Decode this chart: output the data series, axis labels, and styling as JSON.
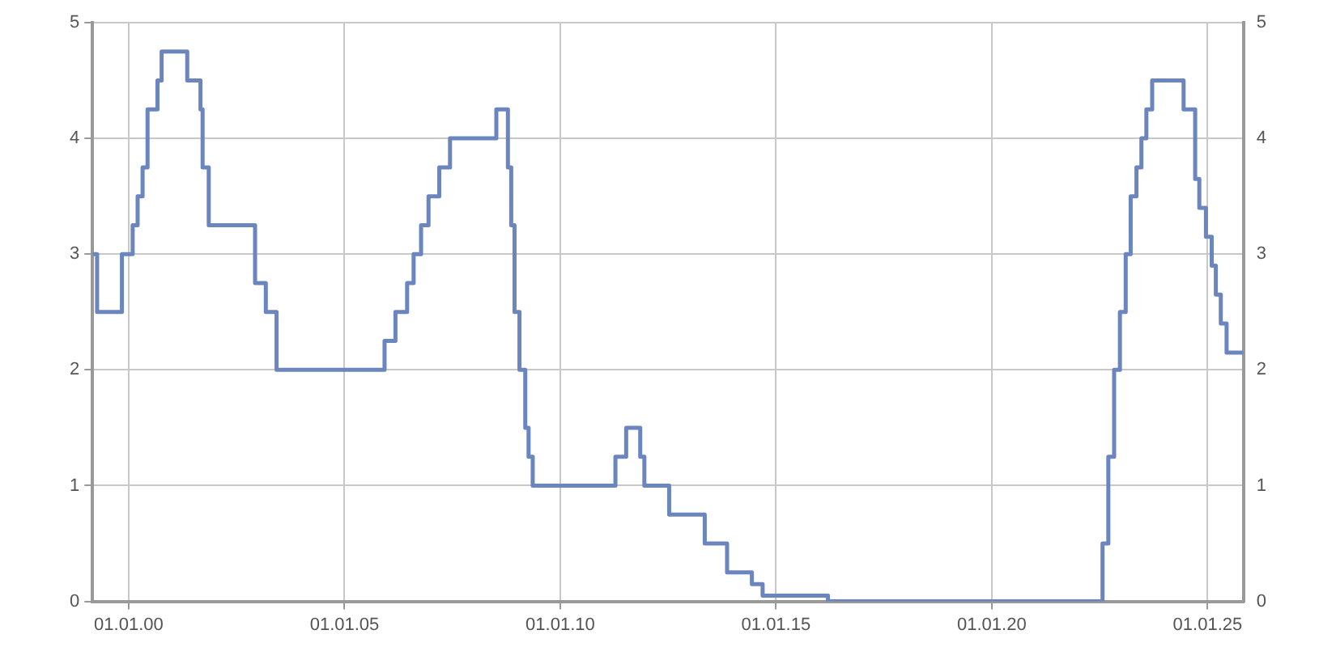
{
  "chart_data": {
    "type": "step",
    "x": [
      "1999-03-01",
      "1999-04-09",
      "1999-11-05",
      "2000-02-04",
      "2000-03-17",
      "2000-04-28",
      "2000-06-09",
      "2000-09-01",
      "2000-10-06",
      "2001-05-11",
      "2001-08-31",
      "2001-09-18",
      "2001-11-09",
      "2002-12-06",
      "2003-03-07",
      "2003-06-06",
      "2005-12-06",
      "2006-03-08",
      "2006-06-15",
      "2006-08-09",
      "2006-10-11",
      "2006-12-13",
      "2007-03-14",
      "2007-06-13",
      "2008-07-09",
      "2008-10-15",
      "2008-11-12",
      "2008-12-10",
      "2009-01-21",
      "2009-03-11",
      "2009-04-08",
      "2009-05-13",
      "2011-04-13",
      "2011-07-13",
      "2011-11-09",
      "2011-12-14",
      "2012-07-11",
      "2013-05-08",
      "2013-11-13",
      "2014-06-11",
      "2014-09-10",
      "2016-03-16",
      "2022-07-27",
      "2022-09-14",
      "2022-11-02",
      "2022-12-21",
      "2023-02-08",
      "2023-03-22",
      "2023-05-10",
      "2023-06-21",
      "2023-08-02",
      "2023-09-20",
      "2024-06-12",
      "2024-09-18",
      "2024-10-23",
      "2024-12-18",
      "2025-02-05",
      "2025-03-12",
      "2025-04-23",
      "2025-06-11",
      "2025-11-01"
    ],
    "series": [
      {
        "color": "#6b85bf",
        "values": [
          3.0,
          2.5,
          3.0,
          3.25,
          3.5,
          3.75,
          4.25,
          4.5,
          4.75,
          4.5,
          4.25,
          3.75,
          3.25,
          2.75,
          2.5,
          2.0,
          2.25,
          2.5,
          2.75,
          3.0,
          3.25,
          3.5,
          3.75,
          4.0,
          4.25,
          3.75,
          3.25,
          2.5,
          2.0,
          1.5,
          1.25,
          1.0,
          1.25,
          1.5,
          1.25,
          1.0,
          0.75,
          0.5,
          0.25,
          0.15,
          0.05,
          0.0,
          0.5,
          1.25,
          2.0,
          2.5,
          3.0,
          3.5,
          3.75,
          4.0,
          4.25,
          4.5,
          4.25,
          3.65,
          3.4,
          3.15,
          2.9,
          2.65,
          2.4,
          2.15,
          2.15
        ]
      }
    ],
    "xlim": [
      "1999-03-01",
      "2025-11-01"
    ],
    "xticks": [
      {
        "value": "2000-01-01",
        "label": "01.01.00"
      },
      {
        "value": "2005-01-01",
        "label": "01.01.05"
      },
      {
        "value": "2010-01-01",
        "label": "01.01.10"
      },
      {
        "value": "2015-01-01",
        "label": "01.01.15"
      },
      {
        "value": "2020-01-01",
        "label": "01.01.20"
      },
      {
        "value": "2025-01-01",
        "label": "01.01.25"
      }
    ],
    "ylim": [
      0,
      5
    ],
    "yticks": [
      0,
      1,
      2,
      3,
      4,
      5
    ],
    "y2lim": [
      0,
      5
    ],
    "y2ticks": [
      0,
      1,
      2,
      3,
      4,
      5
    ],
    "grid": true,
    "legend": false,
    "marker": "none",
    "line_style": "solid"
  }
}
